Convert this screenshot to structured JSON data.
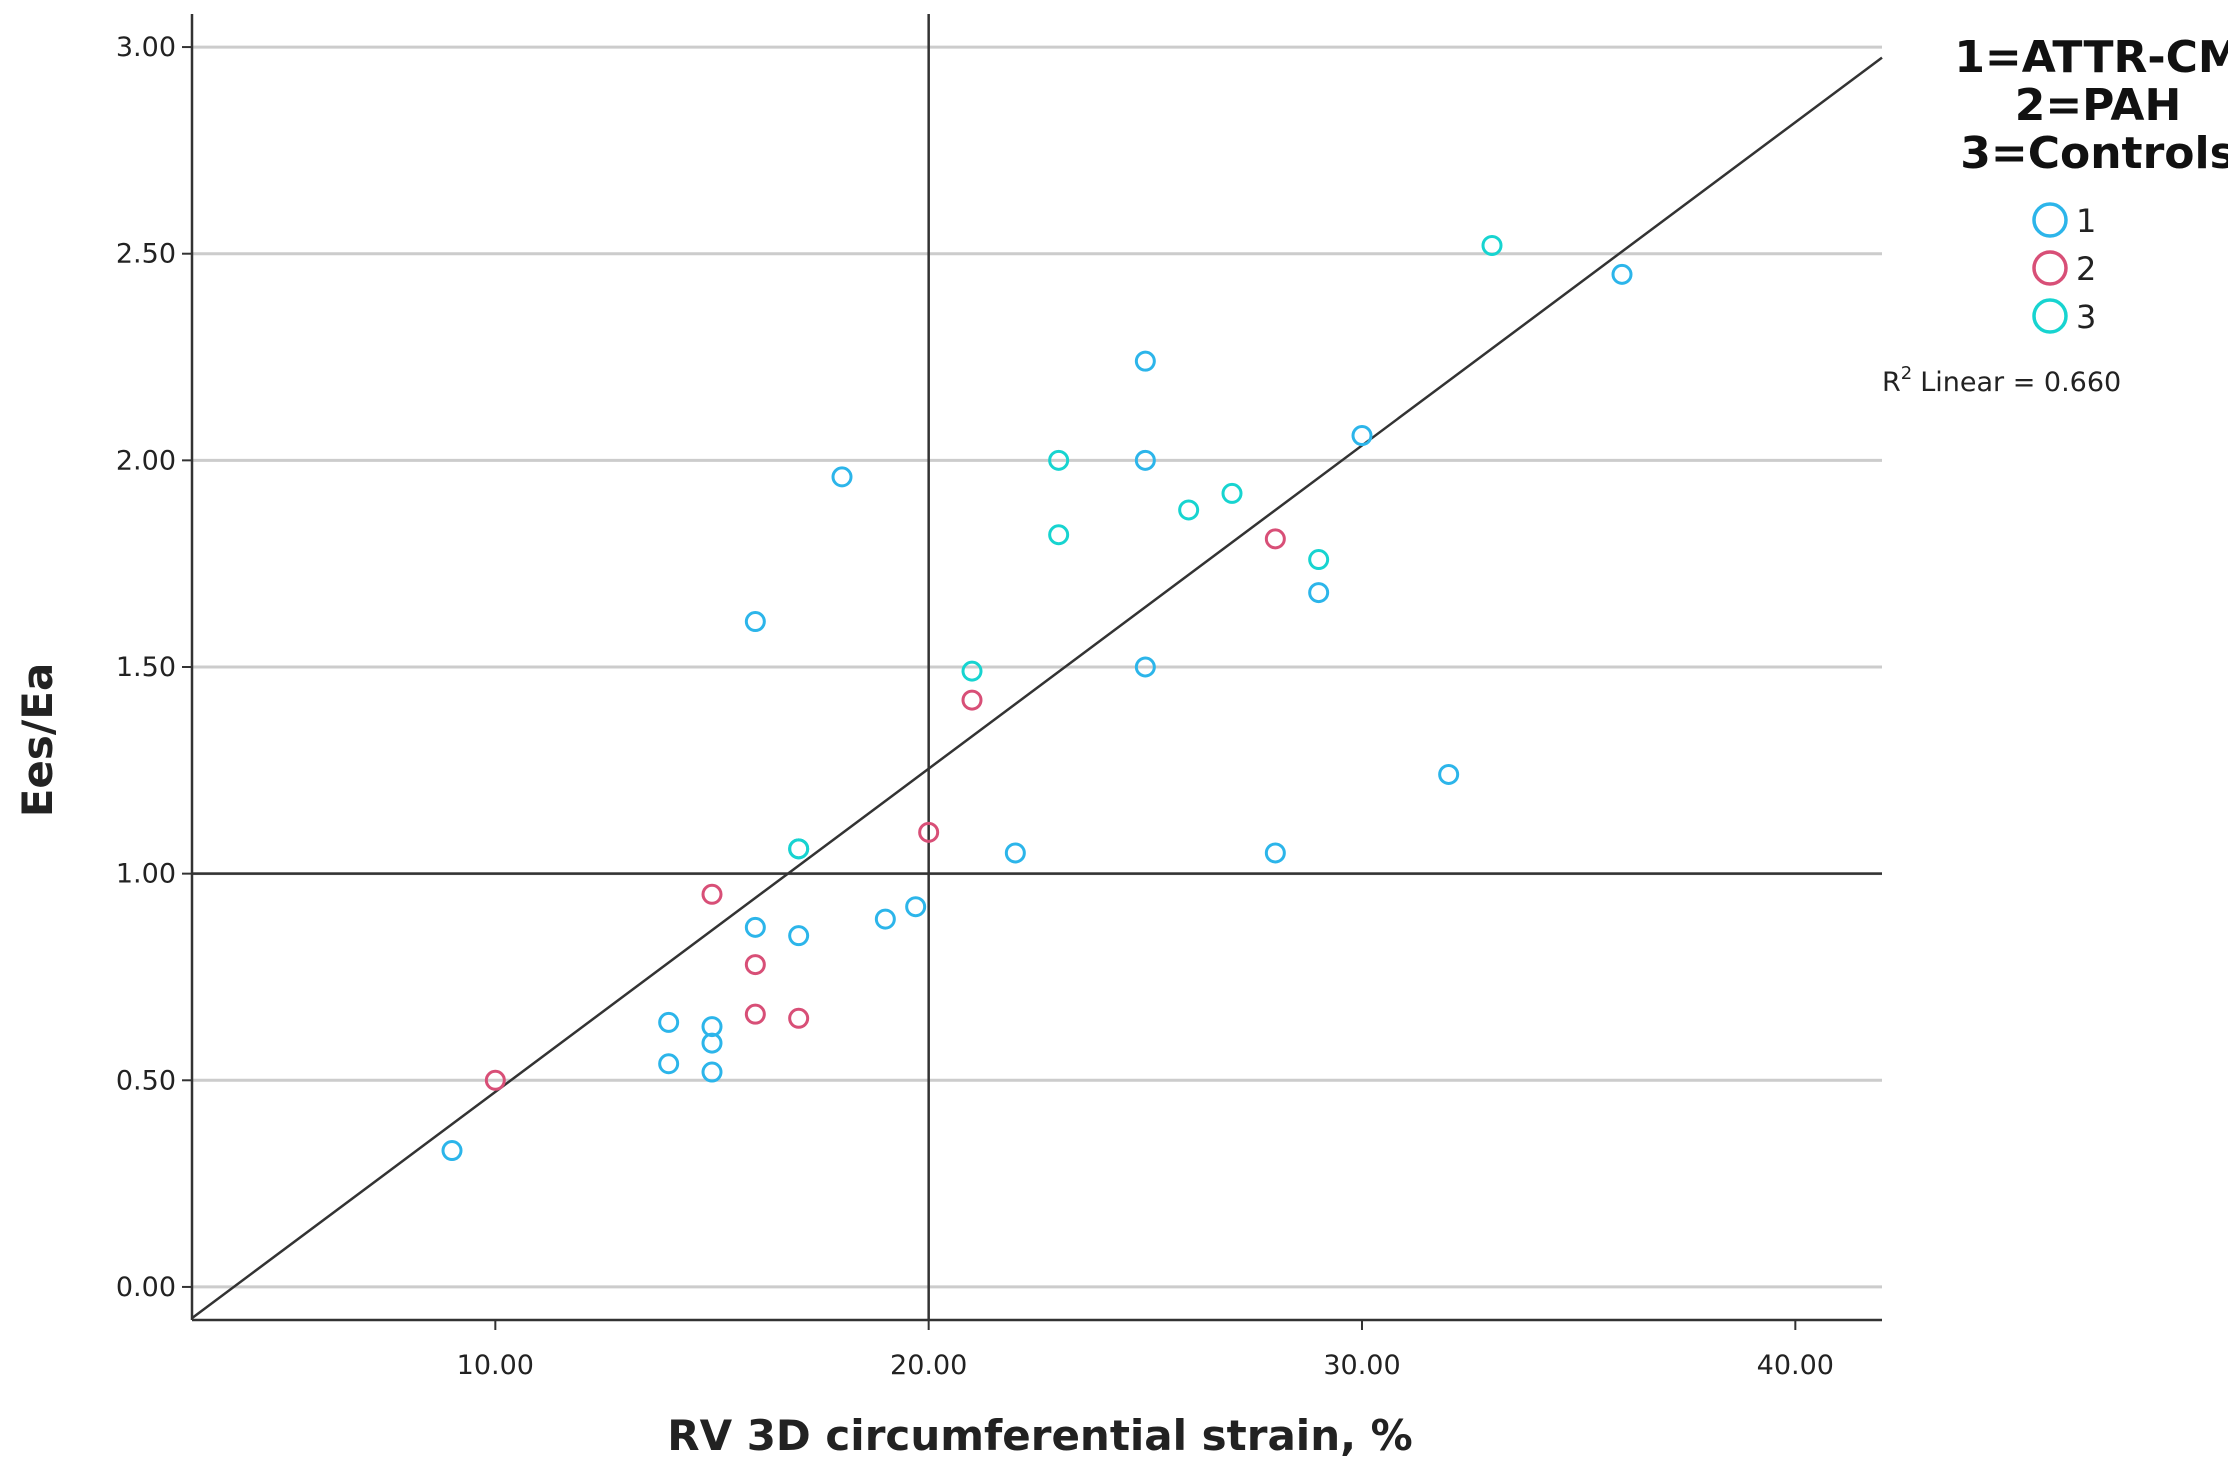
{
  "chart_data": {
    "type": "scatter",
    "title": "",
    "xlabel": "RV 3D circumferential strain, %",
    "ylabel": "Ees/Ea",
    "xlim": [
      3.0,
      42.0
    ],
    "ylim": [
      -0.08,
      3.08
    ],
    "x_ticks": [
      10,
      20,
      30,
      40
    ],
    "x_tick_labels": [
      "10.00",
      "20.00",
      "30.00",
      "40.00"
    ],
    "y_ticks": [
      0,
      0.5,
      1,
      1.5,
      2,
      2.5,
      3
    ],
    "y_tick_labels": [
      "0.00",
      "0.50",
      "1.00",
      "1.50",
      "2.00",
      "2.50",
      "3.00"
    ],
    "grid": "horizontal",
    "reference_lines": {
      "x": 20,
      "y": 1.0
    },
    "fit_line": {
      "label": "Linear = 0.660",
      "r_symbol": "R",
      "r_exp": "2",
      "slope": 0.0782,
      "intercept": -0.31
    },
    "legend": {
      "title_lines": [
        "1=ATTR-CM",
        "2=PAH",
        "3=Controls"
      ],
      "placement": "top-right"
    },
    "series": [
      {
        "name": "1",
        "color": "#2cb5ea",
        "points": [
          [
            9,
            0.33
          ],
          [
            14,
            0.64
          ],
          [
            14,
            0.54
          ],
          [
            15,
            0.63
          ],
          [
            15,
            0.59
          ],
          [
            15,
            0.52
          ],
          [
            16,
            0.87
          ],
          [
            16,
            1.61
          ],
          [
            17,
            0.85
          ],
          [
            17,
            1.06
          ],
          [
            18,
            1.96
          ],
          [
            19,
            0.89
          ],
          [
            19.7,
            0.92
          ],
          [
            22,
            1.05
          ],
          [
            25,
            2.24
          ],
          [
            25,
            2.0
          ],
          [
            25,
            1.5
          ],
          [
            28,
            1.05
          ],
          [
            29,
            1.68
          ],
          [
            30,
            2.06
          ],
          [
            32,
            1.24
          ],
          [
            36,
            2.45
          ]
        ]
      },
      {
        "name": "2",
        "color": "#d84f77",
        "points": [
          [
            10,
            0.5
          ],
          [
            15,
            0.95
          ],
          [
            16,
            0.78
          ],
          [
            16,
            0.66
          ],
          [
            17,
            0.65
          ],
          [
            20,
            1.1
          ],
          [
            21,
            1.42
          ],
          [
            28,
            1.81
          ]
        ]
      },
      {
        "name": "3",
        "color": "#17d4d0",
        "points": [
          [
            17,
            1.06
          ],
          [
            21,
            1.49
          ],
          [
            23,
            2.0
          ],
          [
            23,
            1.82
          ],
          [
            26,
            1.88
          ],
          [
            27,
            1.92
          ],
          [
            29,
            1.76
          ],
          [
            33,
            2.52
          ]
        ]
      }
    ]
  }
}
